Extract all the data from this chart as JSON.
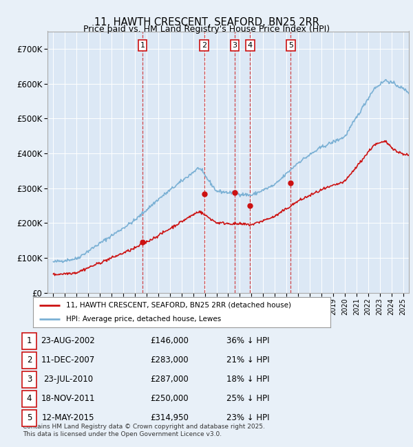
{
  "title": "11, HAWTH CRESCENT, SEAFORD, BN25 2RR",
  "subtitle": "Price paid vs. HM Land Registry's House Price Index (HPI)",
  "background_color": "#e8f0f8",
  "plot_bg_color": "#dce8f5",
  "hpi_color": "#7ab0d4",
  "sale_color": "#cc1111",
  "ylim": [
    0,
    750000
  ],
  "yticks": [
    0,
    100000,
    200000,
    300000,
    400000,
    500000,
    600000,
    700000
  ],
  "ytick_labels": [
    "£0",
    "£100K",
    "£200K",
    "£300K",
    "£400K",
    "£500K",
    "£600K",
    "£700K"
  ],
  "sale_dates": [
    2002.64,
    2007.94,
    2010.56,
    2011.88,
    2015.36
  ],
  "sale_prices": [
    146000,
    283000,
    287000,
    250000,
    314950
  ],
  "sale_labels": [
    "1",
    "2",
    "3",
    "4",
    "5"
  ],
  "legend_sale": "11, HAWTH CRESCENT, SEAFORD, BN25 2RR (detached house)",
  "legend_hpi": "HPI: Average price, detached house, Lewes",
  "table_data": [
    [
      "1",
      "23-AUG-2002",
      "£146,000",
      "36% ↓ HPI"
    ],
    [
      "2",
      "11-DEC-2007",
      "£283,000",
      "21% ↓ HPI"
    ],
    [
      "3",
      "23-JUL-2010",
      "£287,000",
      "18% ↓ HPI"
    ],
    [
      "4",
      "18-NOV-2011",
      "£250,000",
      "25% ↓ HPI"
    ],
    [
      "5",
      "12-MAY-2015",
      "£314,950",
      "23% ↓ HPI"
    ]
  ],
  "footnote": "Contains HM Land Registry data © Crown copyright and database right 2025.\nThis data is licensed under the Open Government Licence v3.0.",
  "xlim_start": 1994.5,
  "xlim_end": 2025.5
}
